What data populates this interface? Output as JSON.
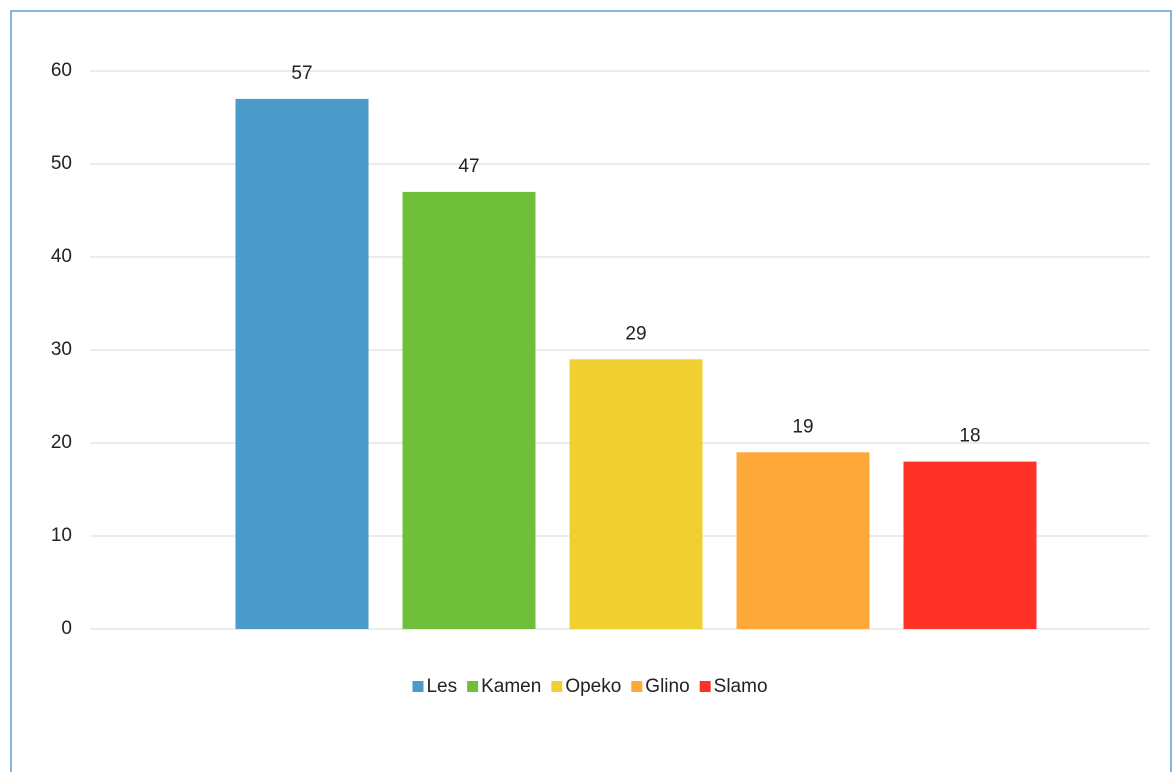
{
  "chart_data": {
    "type": "bar",
    "categories": [
      null
    ],
    "series": [
      {
        "name": "Les",
        "color": "#4a9bc9",
        "values": [
          57
        ]
      },
      {
        "name": "Kamen",
        "color": "#6fbf3b",
        "values": [
          47
        ]
      },
      {
        "name": "Opeko",
        "color": "#f0d030",
        "values": [
          29
        ]
      },
      {
        "name": "Glino",
        "color": "#ffa83a",
        "values": [
          19
        ]
      },
      {
        "name": "Slamo",
        "color": "#ff3228",
        "values": [
          18
        ]
      }
    ],
    "ylim": [
      0,
      60
    ],
    "yticks": [
      0,
      10,
      20,
      30,
      40,
      50,
      60
    ],
    "grid": true,
    "legend": "bottom"
  }
}
